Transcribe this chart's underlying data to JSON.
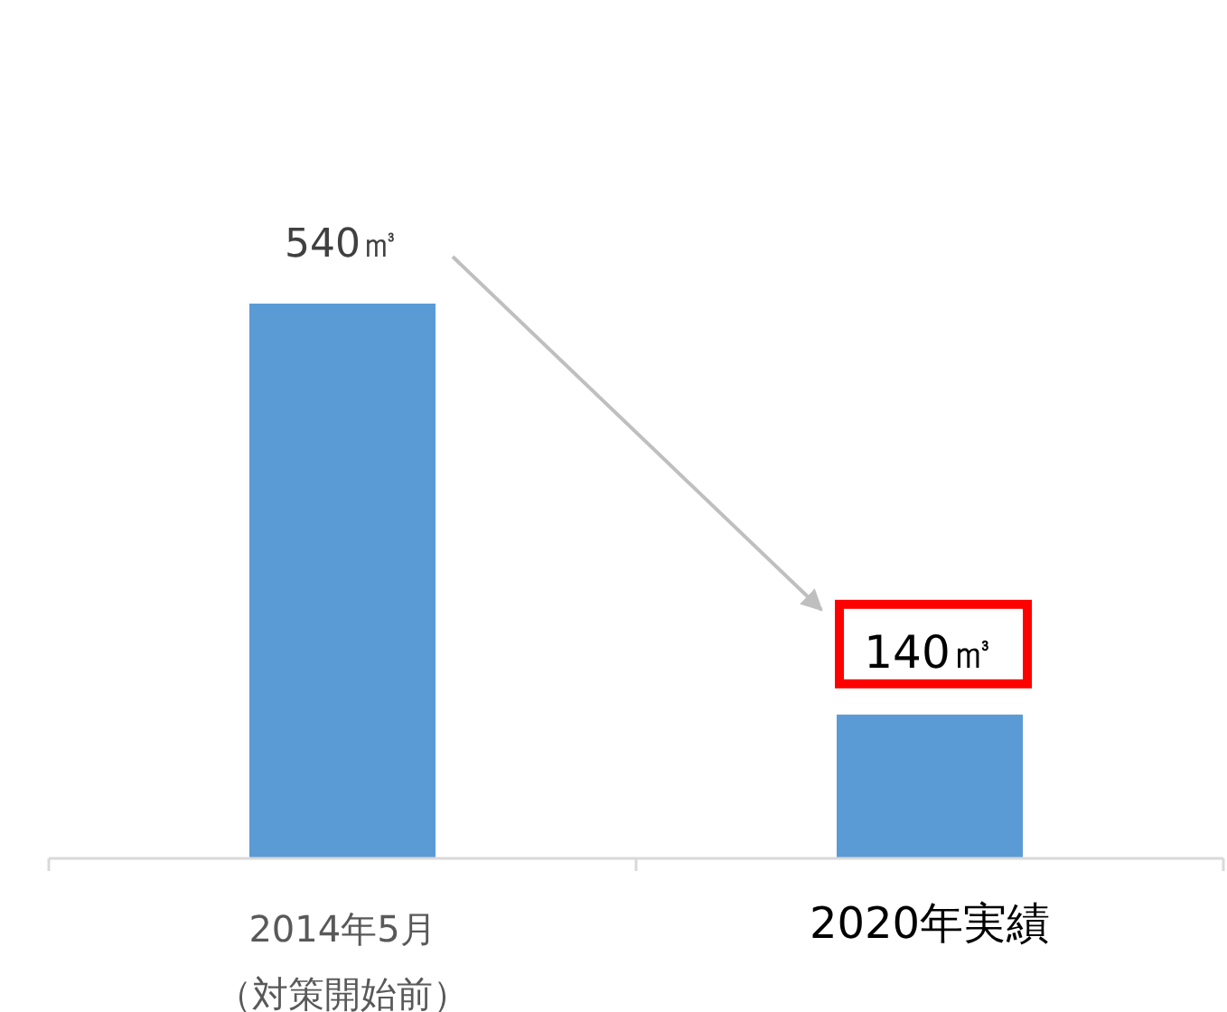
{
  "chart_data": {
    "type": "bar",
    "categories": [
      "2014年5月（対策開始前）",
      "2020年実績"
    ],
    "values": [
      540,
      140
    ],
    "colors": [
      "#5b9bd5",
      "#5b9bd5"
    ],
    "value_labels": [
      "540㎥",
      "140㎥"
    ]
  }
}
